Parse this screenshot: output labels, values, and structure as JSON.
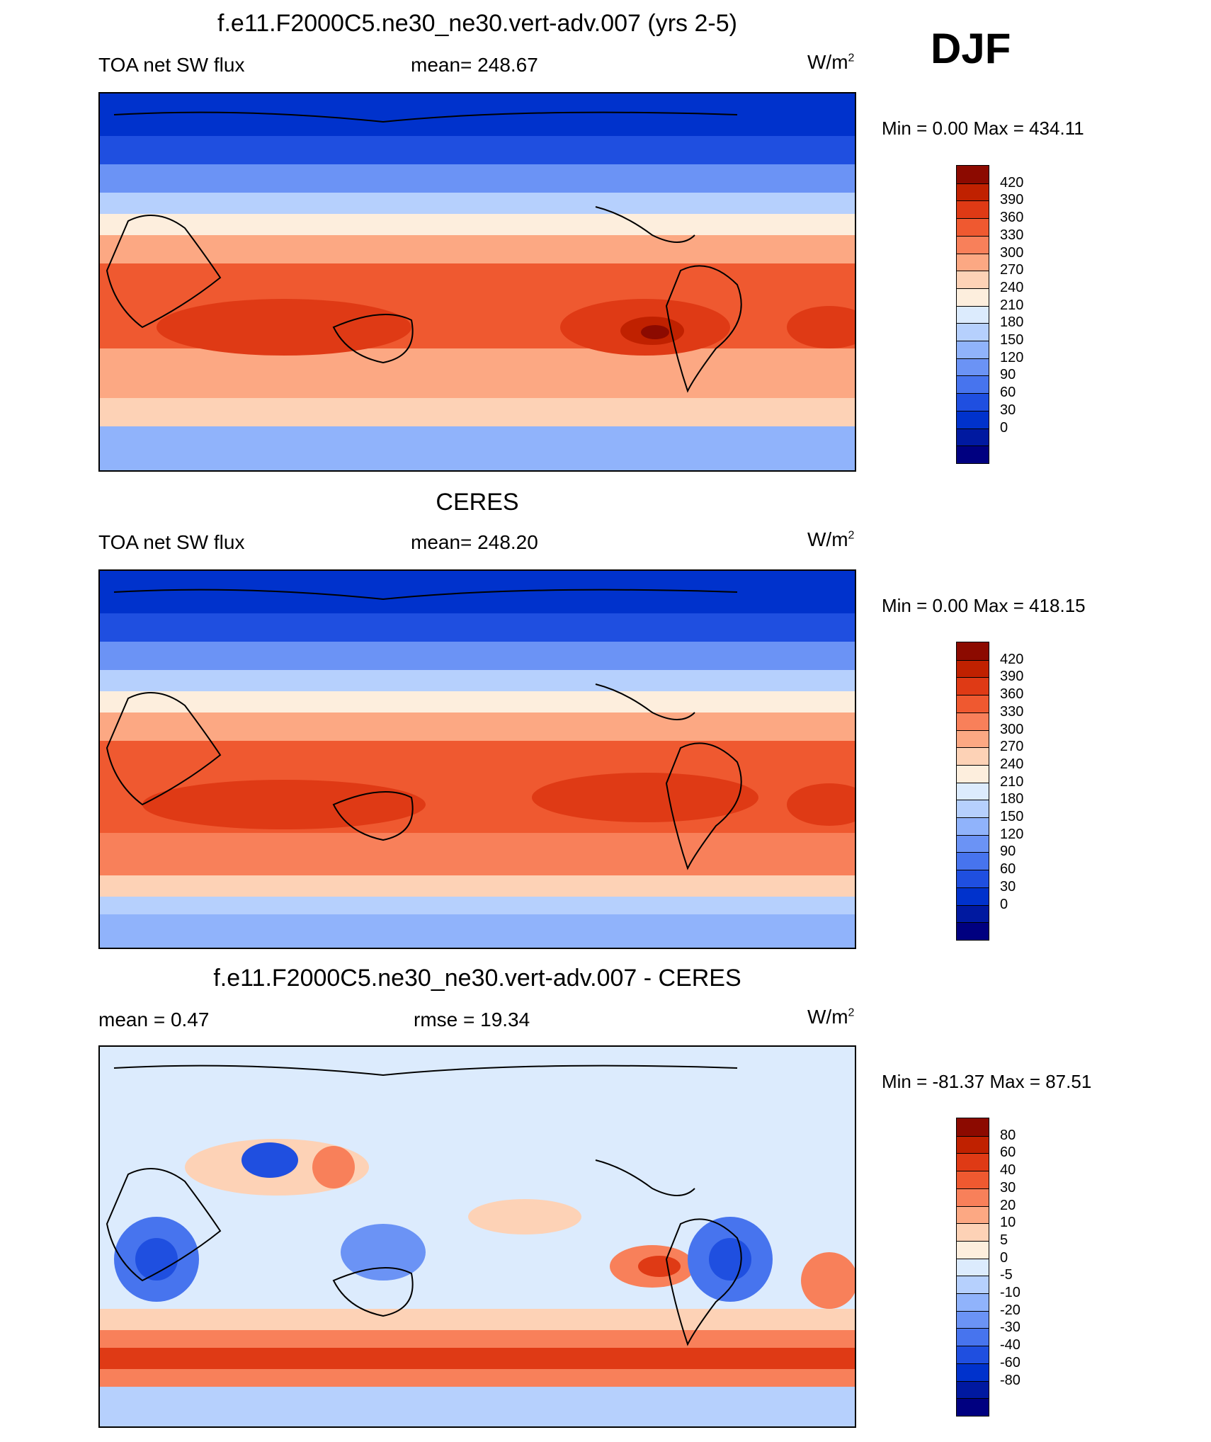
{
  "season": "DJF",
  "colors": {
    "sw": [
      "#000080",
      "#0019a0",
      "#0032cc",
      "#1f4fe0",
      "#4774ee",
      "#6b93f5",
      "#90b3fb",
      "#b6d0fd",
      "#dcebfd",
      "#fdeedd",
      "#fdd2b6",
      "#fca883",
      "#f8805a",
      "#ef5930",
      "#df3a15",
      "#c02100",
      "#8c0a00"
    ],
    "diff": [
      "#000080",
      "#0019a0",
      "#0032cc",
      "#1f4fe0",
      "#4774ee",
      "#6b93f5",
      "#90b3fb",
      "#b6d0fd",
      "#dcebfd",
      "#fdeedd",
      "#fdd2b6",
      "#fca883",
      "#f8805a",
      "#ef5930",
      "#df3a15",
      "#c02100",
      "#8c0a00"
    ]
  },
  "panels": [
    {
      "title": "f.e11.F2000C5.ne30_ne30.vert-adv.007 (yrs 2-5)",
      "left_label": "TOA net SW flux",
      "center_label": "mean= 248.67",
      "units": "W/m",
      "units_sup": "2",
      "minmax": "Min =   0.00 Max = 434.11",
      "colorbar_labels": [
        "420",
        "390",
        "360",
        "330",
        "300",
        "270",
        "240",
        "210",
        "180",
        "150",
        "120",
        "90",
        "60",
        "30",
        "0"
      ]
    },
    {
      "title": "CERES",
      "left_label": "TOA net SW flux",
      "center_label": "mean= 248.20",
      "units": "W/m",
      "units_sup": "2",
      "minmax": "Min =   0.00 Max = 418.15",
      "colorbar_labels": [
        "420",
        "390",
        "360",
        "330",
        "300",
        "270",
        "240",
        "210",
        "180",
        "150",
        "120",
        "90",
        "60",
        "30",
        "0"
      ]
    },
    {
      "title": "f.e11.F2000C5.ne30_ne30.vert-adv.007 - CERES",
      "left_label": "mean =   0.47",
      "center_label": "rmse =  19.34",
      "units": "W/m",
      "units_sup": "2",
      "minmax": "Min = -81.37 Max =  87.51",
      "colorbar_labels": [
        "80",
        "60",
        "40",
        "30",
        "20",
        "10",
        "5",
        "0",
        "-5",
        "-10",
        "-20",
        "-30",
        "-40",
        "-60",
        "-80"
      ]
    }
  ]
}
